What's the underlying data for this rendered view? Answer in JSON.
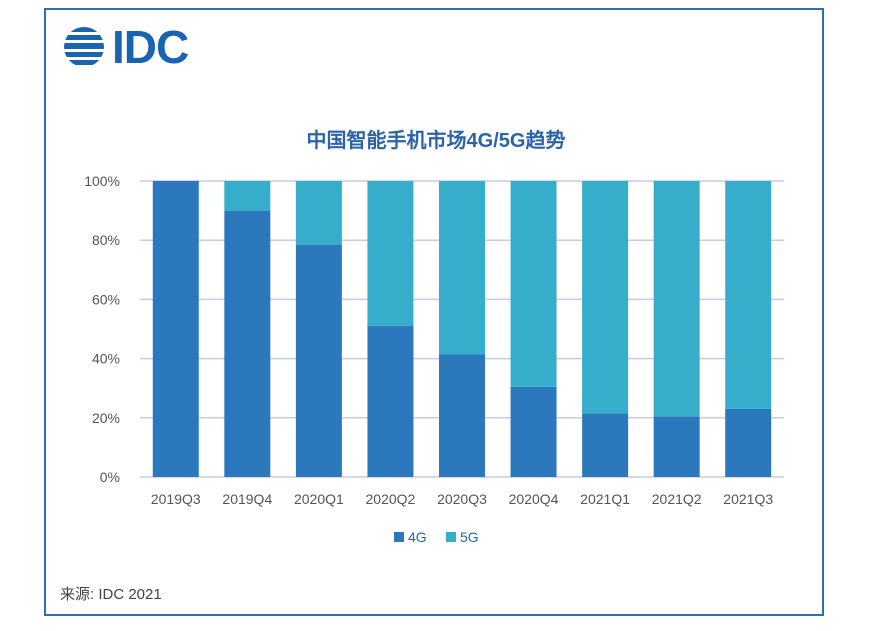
{
  "logo": {
    "text": "IDC",
    "icon": "idc-globe-icon"
  },
  "source": "来源: IDC 2021",
  "colors": {
    "c4g": "#2b78bd",
    "c5g": "#36aecb",
    "grid": "#c9c9e8",
    "frame": "#2d6fb6"
  },
  "chart_data": {
    "type": "bar",
    "stacked": true,
    "title": "中国智能手机市场4G/5G趋势",
    "categories": [
      "2019Q3",
      "2019Q4",
      "2020Q1",
      "2020Q2",
      "2020Q3",
      "2020Q4",
      "2021Q1",
      "2021Q2",
      "2021Q3"
    ],
    "series": [
      {
        "name": "4G",
        "values": [
          100,
          90,
          78.5,
          51,
          41.5,
          30.5,
          21.5,
          20.5,
          23
        ]
      },
      {
        "name": "5G",
        "values": [
          0,
          10,
          21.5,
          49,
          58.5,
          69.5,
          78.5,
          79.5,
          77
        ]
      }
    ],
    "yticks": [
      "0%",
      "20%",
      "40%",
      "60%",
      "80%",
      "100%"
    ],
    "ylim": [
      0,
      100
    ],
    "legend": "bottom-center"
  }
}
